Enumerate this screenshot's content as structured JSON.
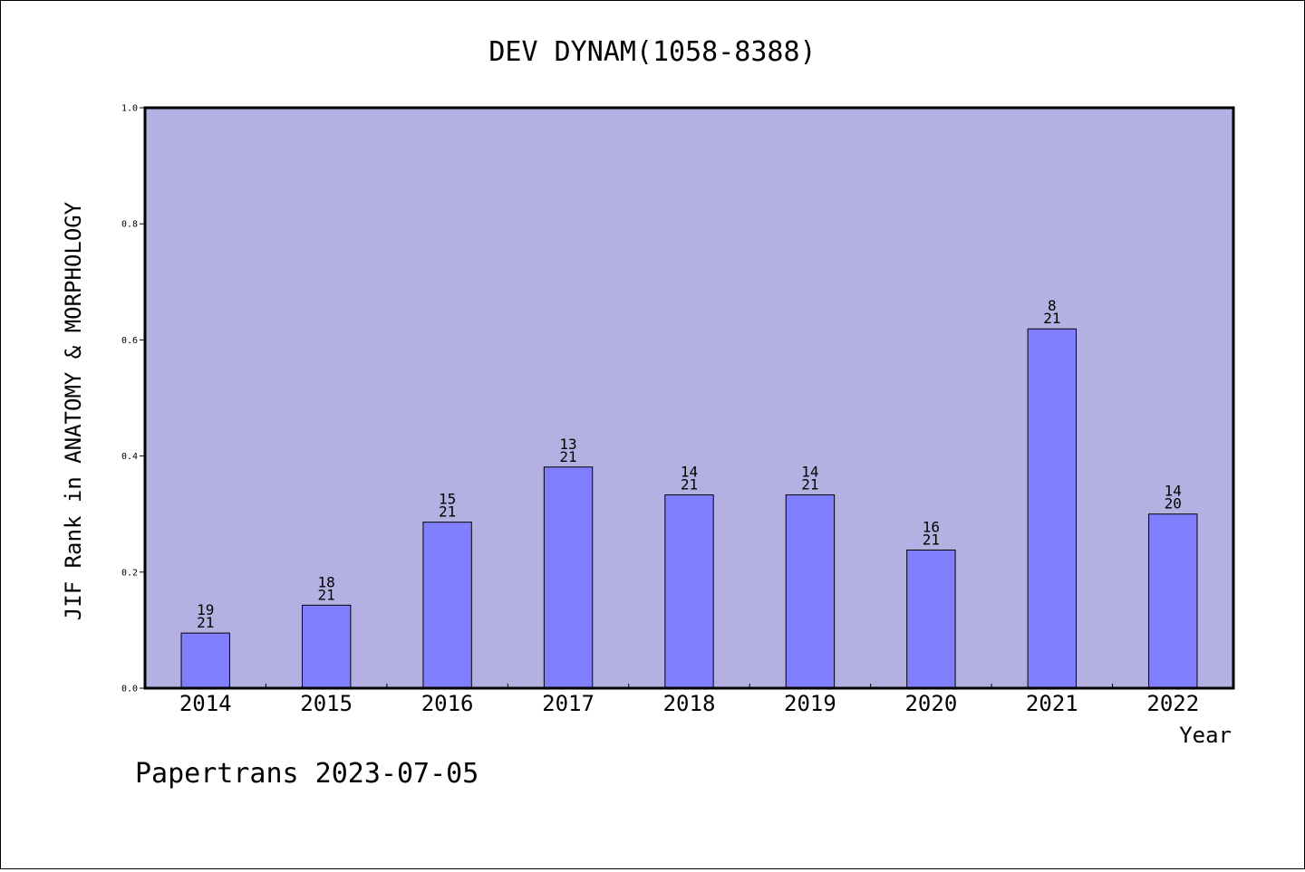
{
  "colors": {
    "plot_background": "#b5b0e2",
    "bar_fill": "#8080ff",
    "bar_stroke": "#000000",
    "axis": "#000000"
  },
  "footer": {
    "text": "Papertrans 2023-07-05"
  },
  "chart_data": {
    "type": "bar",
    "title": "DEV DYNAM(1058-8388)",
    "xlabel": "Year",
    "ylabel": "JIF Rank in ANATOMY & MORPHOLOGY",
    "categories": [
      "2014",
      "2015",
      "2016",
      "2017",
      "2018",
      "2019",
      "2020",
      "2021",
      "2022"
    ],
    "values": [
      0.095,
      0.143,
      0.286,
      0.381,
      0.333,
      0.333,
      0.238,
      0.619,
      0.3
    ],
    "rank": [
      "19",
      "18",
      "15",
      "13",
      "14",
      "14",
      "16",
      "8",
      "14"
    ],
    "total": [
      "21",
      "21",
      "21",
      "21",
      "21",
      "21",
      "21",
      "21",
      "20"
    ],
    "ylim": [
      0,
      1.0
    ],
    "yticks": [
      "0.0",
      "0.2",
      "0.4",
      "0.6",
      "0.8",
      "1.0"
    ],
    "grid": false,
    "legend": "none"
  }
}
